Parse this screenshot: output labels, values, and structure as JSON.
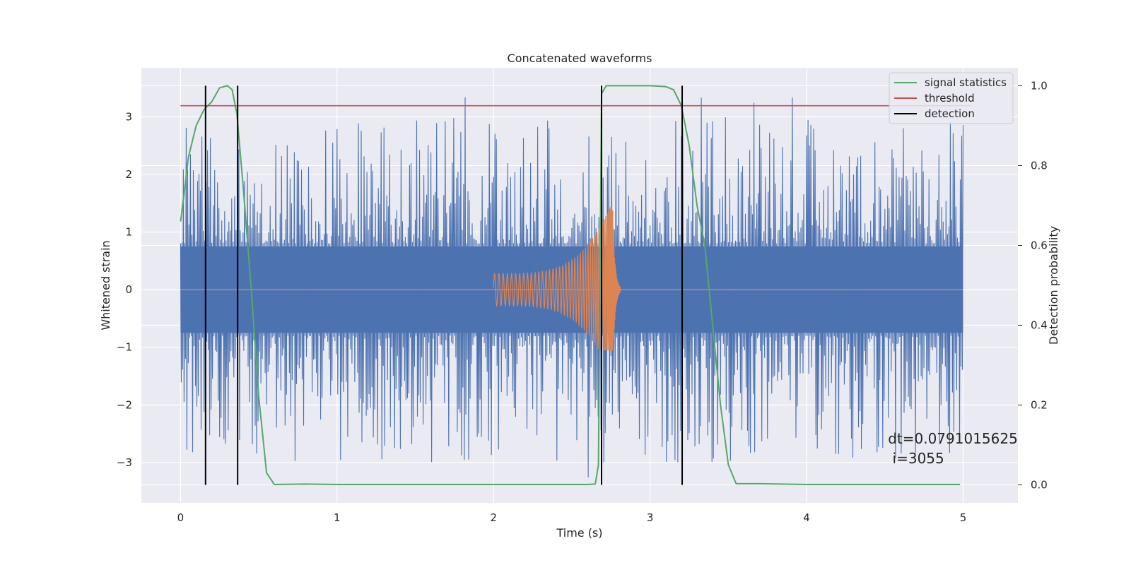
{
  "chart_data": {
    "type": "line",
    "title": "Concatenated waveforms",
    "xlabel": "Time (s)",
    "ylabel": "Whitened strain",
    "y2label": "Detection probability",
    "xlim": [
      -0.25,
      5.35
    ],
    "ylim": [
      -3.7,
      3.85
    ],
    "y2lim": [
      -0.045,
      1.045
    ],
    "xticks": [
      0,
      1,
      2,
      3,
      4,
      5
    ],
    "yticks": [
      -3,
      -2,
      -1,
      0,
      1,
      2,
      3
    ],
    "y2ticks": [
      0.0,
      0.2,
      0.4,
      0.6,
      0.8,
      1.0
    ],
    "ytick_labels": [
      "−3",
      "−2",
      "−1",
      "0",
      "1",
      "2",
      "3"
    ],
    "y2tick_labels": [
      "0.0",
      "0.2",
      "0.4",
      "0.6",
      "0.8",
      "1.0"
    ],
    "grid": true,
    "legend_position": "top-right",
    "background": "#eaeaf2",
    "series": [
      {
        "name": "",
        "description_kind": "whitened noise strain",
        "axis": "left",
        "color": "#4c72b0",
        "x_range": [
          0,
          5
        ],
        "core_amplitude": 0.75,
        "noise_peak_range": [
          -3.35,
          3.5
        ]
      },
      {
        "name": "",
        "axis": "left",
        "color": "#dd8452",
        "chirp_start": 2.0,
        "chirp_merger": 2.76,
        "start_amplitude": 0.28,
        "peak_amplitude": 1.55,
        "min_value": -1.05
      },
      {
        "name": "signal statistics",
        "axis": "right",
        "color": "#55a868",
        "x": [
          0.0,
          0.02,
          0.05,
          0.1,
          0.15,
          0.2,
          0.25,
          0.3,
          0.33,
          0.36,
          0.4,
          0.45,
          0.5,
          0.55,
          0.6,
          0.8,
          1.0,
          2.0,
          2.6,
          2.65,
          2.67,
          2.69,
          2.72,
          2.8,
          2.9,
          3.0,
          3.1,
          3.15,
          3.2,
          3.25,
          3.3,
          3.35,
          3.4,
          3.45,
          3.5,
          3.55,
          3.7,
          4.0,
          4.98
        ],
        "y": [
          0.66,
          0.72,
          0.82,
          0.9,
          0.94,
          0.96,
          0.995,
          1.0,
          0.99,
          0.93,
          0.75,
          0.5,
          0.22,
          0.03,
          0.001,
          0.002,
          0.001,
          0.001,
          0.001,
          0.002,
          0.05,
          0.98,
          1.0,
          1.0,
          1.0,
          1.0,
          0.998,
          0.99,
          0.95,
          0.85,
          0.7,
          0.6,
          0.4,
          0.2,
          0.05,
          0.003,
          0.003,
          0.001,
          0.001
        ]
      },
      {
        "name": "threshold",
        "axis": "right",
        "color": "#c44e52",
        "value": 0.95,
        "x_range": [
          0,
          5.05
        ]
      },
      {
        "name": "detection",
        "axis": "right",
        "color": "#000000",
        "times": [
          0.16,
          0.365,
          2.69,
          3.205
        ]
      }
    ],
    "annotation": {
      "line1": "dt=0.0791015625",
      "line2": " i=3055",
      "x": 4.52
    }
  }
}
